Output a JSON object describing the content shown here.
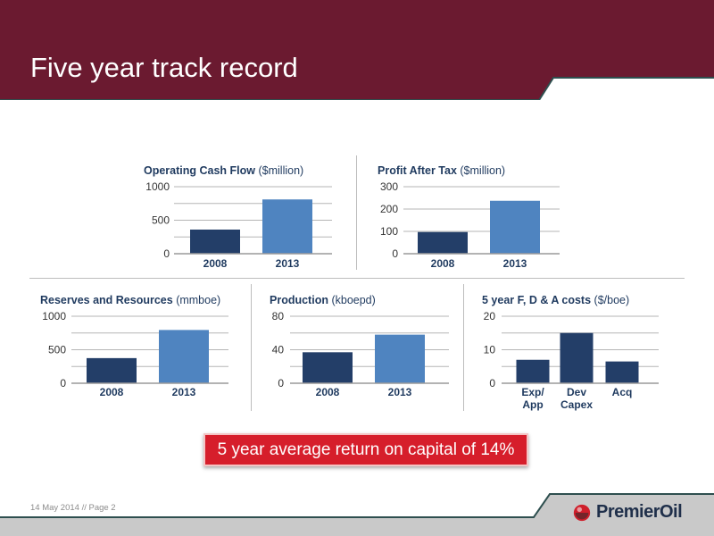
{
  "slide": {
    "title": "Five year track record",
    "callout": "5 year average return on capital of 14%",
    "footer": "14 May 2014 // Page 2",
    "logo_text": "PremierOil"
  },
  "colors": {
    "header_bg": "#6b1a30",
    "dark_bar": "#233e68",
    "light_bar": "#4f84c0",
    "callout_bg": "#d61e2b",
    "footer_bg": "#c9c9c9"
  },
  "chart_data": [
    {
      "id": "ocf",
      "type": "bar",
      "title": "Operating Cash Flow",
      "unit": "($million)",
      "categories": [
        "2008",
        "2013"
      ],
      "values": [
        360,
        810
      ],
      "bar_colors": [
        "dark",
        "light"
      ],
      "ylim": [
        0,
        1000
      ],
      "yticks": [
        0,
        500,
        1000
      ],
      "gridlines": [
        0,
        250,
        500,
        750,
        1000
      ],
      "grid": true
    },
    {
      "id": "pat",
      "type": "bar",
      "title": "Profit After Tax",
      "unit": "($million)",
      "categories": [
        "2008",
        "2013"
      ],
      "values": [
        97,
        237
      ],
      "bar_colors": [
        "dark",
        "light"
      ],
      "ylim": [
        0,
        300
      ],
      "yticks": [
        0,
        100,
        200,
        300
      ],
      "gridlines": [
        0,
        100,
        200,
        300
      ],
      "grid": true
    },
    {
      "id": "reserves",
      "type": "bar",
      "title": "Reserves and Resources",
      "unit": "(mmboe)",
      "categories": [
        "2008",
        "2013"
      ],
      "values": [
        375,
        795
      ],
      "bar_colors": [
        "dark",
        "light"
      ],
      "ylim": [
        0,
        1000
      ],
      "yticks": [
        0,
        500,
        1000
      ],
      "gridlines": [
        0,
        250,
        500,
        750,
        1000
      ],
      "grid": true
    },
    {
      "id": "production",
      "type": "bar",
      "title": "Production",
      "unit": "(kboepd)",
      "categories": [
        "2008",
        "2013"
      ],
      "values": [
        37,
        58
      ],
      "bar_colors": [
        "dark",
        "light"
      ],
      "ylim": [
        0,
        80
      ],
      "yticks": [
        0,
        40,
        80
      ],
      "gridlines": [
        0,
        20,
        40,
        60,
        80
      ],
      "grid": true
    },
    {
      "id": "fda",
      "type": "bar",
      "title": "5 year F, D & A costs",
      "unit": "($/boe)",
      "categories": [
        "Exp/\nApp",
        "Dev\nCapex",
        "Acq"
      ],
      "values": [
        7,
        15,
        6.5
      ],
      "bar_colors": [
        "dark",
        "dark",
        "dark"
      ],
      "ylim": [
        0,
        20
      ],
      "yticks": [
        0,
        10,
        20
      ],
      "gridlines": [
        0,
        5,
        10,
        15,
        20
      ],
      "grid": true
    }
  ]
}
